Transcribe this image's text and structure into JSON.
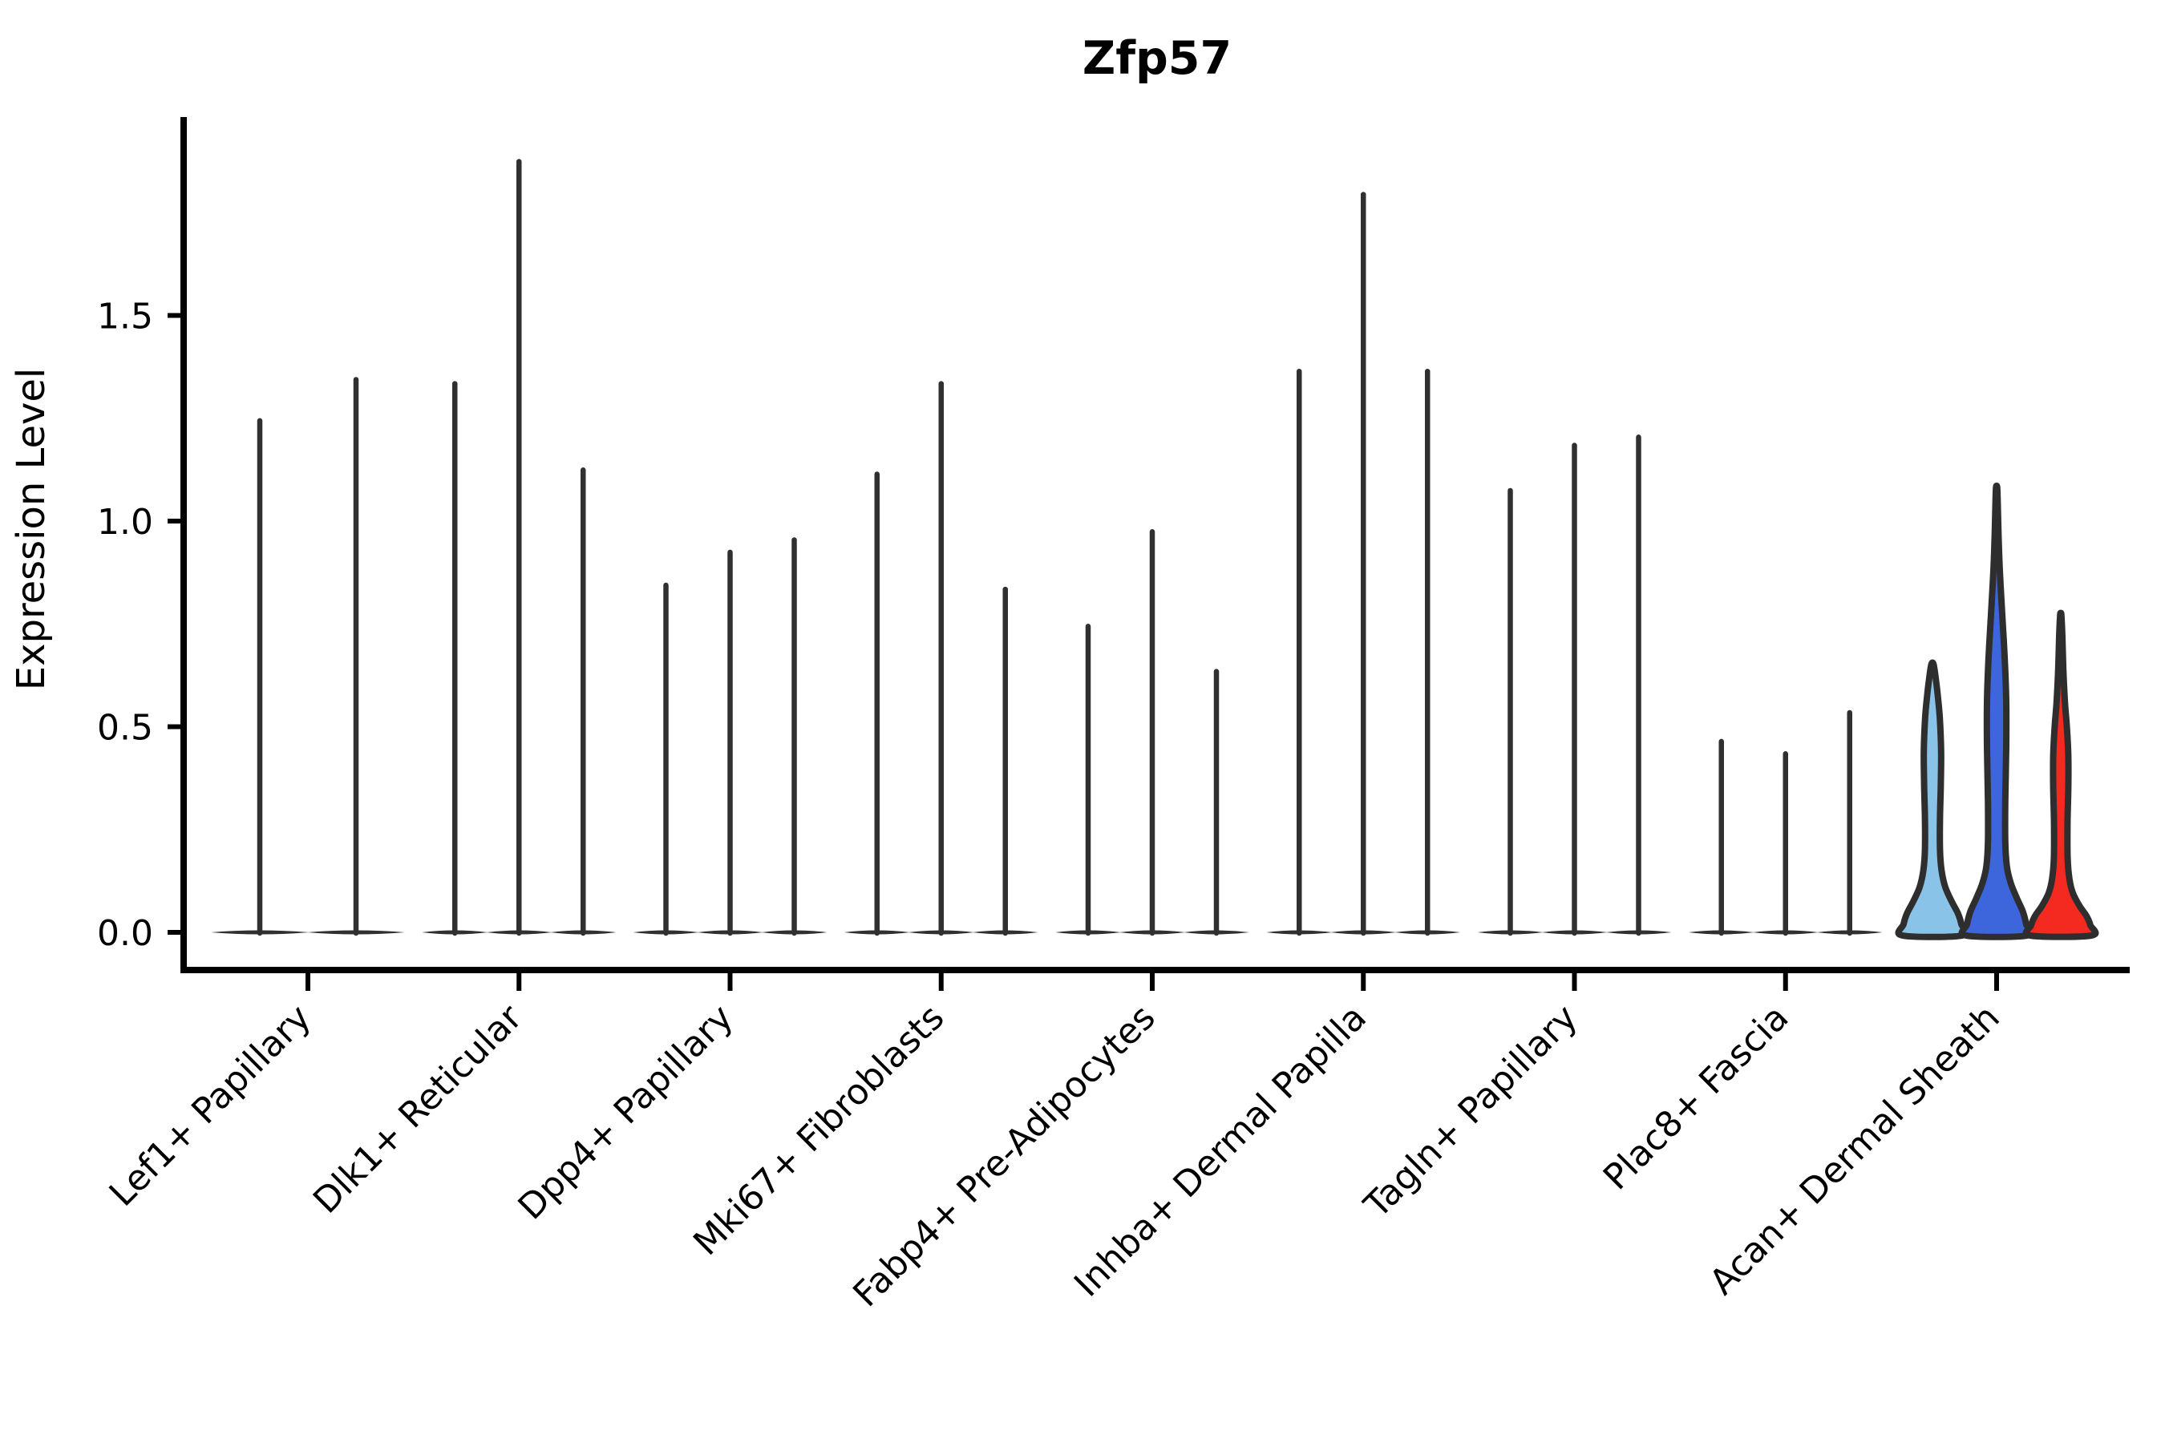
{
  "title": "Zfp57",
  "axes": {
    "ylabel": "Expression Level",
    "ytick_labels": [
      "0.0",
      "0.5",
      "1.0",
      "1.5"
    ]
  },
  "chart_data": {
    "type": "violin",
    "title": "Zfp57",
    "xlabel": "",
    "ylabel": "Expression Level",
    "ylim": [
      0,
      1.95
    ],
    "yticks": [
      0.0,
      0.5,
      1.0,
      1.5
    ],
    "grid": false,
    "legend": "none",
    "categories": [
      "Lef1+ Papillary",
      "Dlk1+ Reticular",
      "Dpp4+ Papillary",
      "Mki67+ Fibroblasts",
      "Fabp4+ Pre-Adipocytes",
      "Inhba+ Dermal Papilla",
      "Tagln+ Papillary",
      "Plac8+ Fascia",
      "Acan+ Dermal Sheath"
    ],
    "groups": [
      {
        "category": "Lef1+ Papillary",
        "violins": [
          {
            "max": 1.25,
            "shape": "spike"
          },
          {
            "max": 1.35,
            "shape": "spike"
          }
        ]
      },
      {
        "category": "Dlk1+ Reticular",
        "violins": [
          {
            "max": 1.34,
            "shape": "spike"
          },
          {
            "max": 1.88,
            "shape": "spike"
          },
          {
            "max": 1.13,
            "shape": "spike"
          }
        ]
      },
      {
        "category": "Dpp4+ Papillary",
        "violins": [
          {
            "max": 0.85,
            "shape": "spike"
          },
          {
            "max": 0.93,
            "shape": "spike"
          },
          {
            "max": 0.96,
            "shape": "spike"
          }
        ]
      },
      {
        "category": "Mki67+ Fibroblasts",
        "violins": [
          {
            "max": 1.12,
            "shape": "spike"
          },
          {
            "max": 1.34,
            "shape": "spike"
          },
          {
            "max": 0.84,
            "shape": "spike"
          }
        ]
      },
      {
        "category": "Fabp4+ Pre-Adipocytes",
        "violins": [
          {
            "max": 0.75,
            "shape": "spike"
          },
          {
            "max": 0.98,
            "shape": "spike"
          },
          {
            "max": 0.64,
            "shape": "spike"
          }
        ]
      },
      {
        "category": "Inhba+ Dermal Papilla",
        "violins": [
          {
            "max": 1.37,
            "shape": "spike"
          },
          {
            "max": 1.8,
            "shape": "spike"
          },
          {
            "max": 1.37,
            "shape": "spike"
          }
        ]
      },
      {
        "category": "Tagln+ Papillary",
        "violins": [
          {
            "max": 1.08,
            "shape": "spike"
          },
          {
            "max": 1.19,
            "shape": "spike"
          },
          {
            "max": 1.21,
            "shape": "spike"
          }
        ]
      },
      {
        "category": "Plac8+ Fascia",
        "violins": [
          {
            "max": 0.47,
            "shape": "spike"
          },
          {
            "max": 0.44,
            "shape": "spike"
          },
          {
            "max": 0.54,
            "shape": "spike"
          }
        ]
      },
      {
        "category": "Acan+ Dermal Sheath",
        "violins": [
          {
            "max": 0.65,
            "shape": "violin",
            "fill": "light_blue",
            "profile": [
              [
                0.0,
                0.93
              ],
              [
                0.02,
                0.9
              ],
              [
                0.045,
                0.8
              ],
              [
                0.075,
                0.6
              ],
              [
                0.11,
                0.4
              ],
              [
                0.15,
                0.285
              ],
              [
                0.2,
                0.235
              ],
              [
                0.28,
                0.235
              ],
              [
                0.36,
                0.26
              ],
              [
                0.44,
                0.27
              ],
              [
                0.52,
                0.23
              ],
              [
                0.58,
                0.16
              ],
              [
                0.625,
                0.09
              ],
              [
                0.65,
                0.04
              ]
            ]
          },
          {
            "max": 1.08,
            "shape": "violin",
            "fill": "dark_blue",
            "profile": [
              [
                0.0,
                0.95
              ],
              [
                0.02,
                0.92
              ],
              [
                0.05,
                0.82
              ],
              [
                0.085,
                0.62
              ],
              [
                0.12,
                0.44
              ],
              [
                0.16,
                0.32
              ],
              [
                0.22,
                0.27
              ],
              [
                0.32,
                0.27
              ],
              [
                0.45,
                0.3
              ],
              [
                0.56,
                0.3
              ],
              [
                0.67,
                0.25
              ],
              [
                0.78,
                0.17
              ],
              [
                0.88,
                0.1
              ],
              [
                0.98,
                0.055
              ],
              [
                1.045,
                0.035
              ],
              [
                1.08,
                0.02
              ]
            ]
          },
          {
            "max": 0.77,
            "shape": "violin",
            "fill": "red",
            "profile": [
              [
                0.0,
                0.95
              ],
              [
                0.018,
                0.92
              ],
              [
                0.04,
                0.8
              ],
              [
                0.065,
                0.58
              ],
              [
                0.095,
                0.38
              ],
              [
                0.13,
                0.27
              ],
              [
                0.18,
                0.215
              ],
              [
                0.26,
                0.21
              ],
              [
                0.35,
                0.235
              ],
              [
                0.43,
                0.235
              ],
              [
                0.5,
                0.19
              ],
              [
                0.56,
                0.13
              ],
              [
                0.64,
                0.08
              ],
              [
                0.72,
                0.05
              ],
              [
                0.77,
                0.02
              ]
            ]
          }
        ]
      }
    ],
    "colors": {
      "spike_ink": "#303030",
      "violin_outline": "#2E2E2E",
      "axis": "#000000",
      "light_blue": "#89C4E8",
      "dark_blue": "#3E66DC",
      "red": "#F42A20"
    }
  }
}
